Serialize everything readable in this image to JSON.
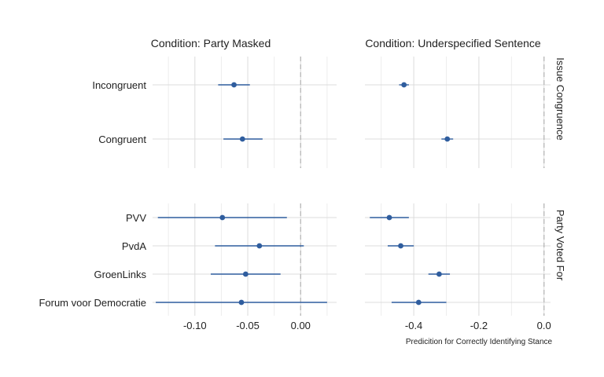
{
  "chart_data": {
    "type": "scatter",
    "subtype": "coefficient-plot-with-intervals",
    "xlabel": "Predicition for Correctly Identifying Stance",
    "grid": true,
    "reference_line": {
      "x": 0,
      "style": "dashed",
      "color": "#b8b8b8"
    },
    "point_color": "#2f5d9e",
    "columns": [
      {
        "id": "masked",
        "title": "Condition: Party Masked",
        "xlim": [
          -0.14,
          0.034
        ],
        "ticks": [
          -0.1,
          -0.05,
          0.0
        ],
        "tick_labels": [
          "-0.10",
          "-0.05",
          "0.00"
        ]
      },
      {
        "id": "underspec",
        "title": "Condition: Underspecified Sentence",
        "xlim": [
          -0.55,
          0.02
        ],
        "ticks": [
          -0.4,
          -0.2,
          0.0
        ],
        "tick_labels": [
          "-0.4",
          "-0.2",
          "0.0"
        ]
      }
    ],
    "rows": [
      {
        "id": "issue",
        "strip": "Issue Congruence",
        "categories": [
          "Incongruent",
          "Congruent"
        ]
      },
      {
        "id": "party",
        "strip": "Party Voted For",
        "categories": [
          "PVV",
          "PvdA",
          "GroenLinks",
          "Forum voor Democratie"
        ]
      }
    ],
    "points": [
      {
        "row": "issue",
        "col": "masked",
        "category": "Incongruent",
        "est": -0.063,
        "lo": -0.078,
        "hi": -0.048
      },
      {
        "row": "issue",
        "col": "masked",
        "category": "Congruent",
        "est": -0.055,
        "lo": -0.073,
        "hi": -0.036
      },
      {
        "row": "issue",
        "col": "underspec",
        "category": "Incongruent",
        "est": -0.43,
        "lo": -0.445,
        "hi": -0.415
      },
      {
        "row": "issue",
        "col": "underspec",
        "category": "Congruent",
        "est": -0.297,
        "lo": -0.315,
        "hi": -0.279
      },
      {
        "row": "party",
        "col": "masked",
        "category": "PVV",
        "est": -0.074,
        "lo": -0.135,
        "hi": -0.013
      },
      {
        "row": "party",
        "col": "masked",
        "category": "PvdA",
        "est": -0.039,
        "lo": -0.081,
        "hi": 0.003
      },
      {
        "row": "party",
        "col": "masked",
        "category": "GroenLinks",
        "est": -0.052,
        "lo": -0.085,
        "hi": -0.019
      },
      {
        "row": "party",
        "col": "masked",
        "category": "Forum voor Democratie",
        "est": -0.056,
        "lo": -0.137,
        "hi": 0.025
      },
      {
        "row": "party",
        "col": "underspec",
        "category": "PVV",
        "est": -0.475,
        "lo": -0.535,
        "hi": -0.415
      },
      {
        "row": "party",
        "col": "underspec",
        "category": "PvdA",
        "est": -0.44,
        "lo": -0.48,
        "hi": -0.4
      },
      {
        "row": "party",
        "col": "underspec",
        "category": "GroenLinks",
        "est": -0.322,
        "lo": -0.355,
        "hi": -0.289
      },
      {
        "row": "party",
        "col": "underspec",
        "category": "Forum voor Democratie",
        "est": -0.385,
        "lo": -0.468,
        "hi": -0.3
      }
    ]
  }
}
